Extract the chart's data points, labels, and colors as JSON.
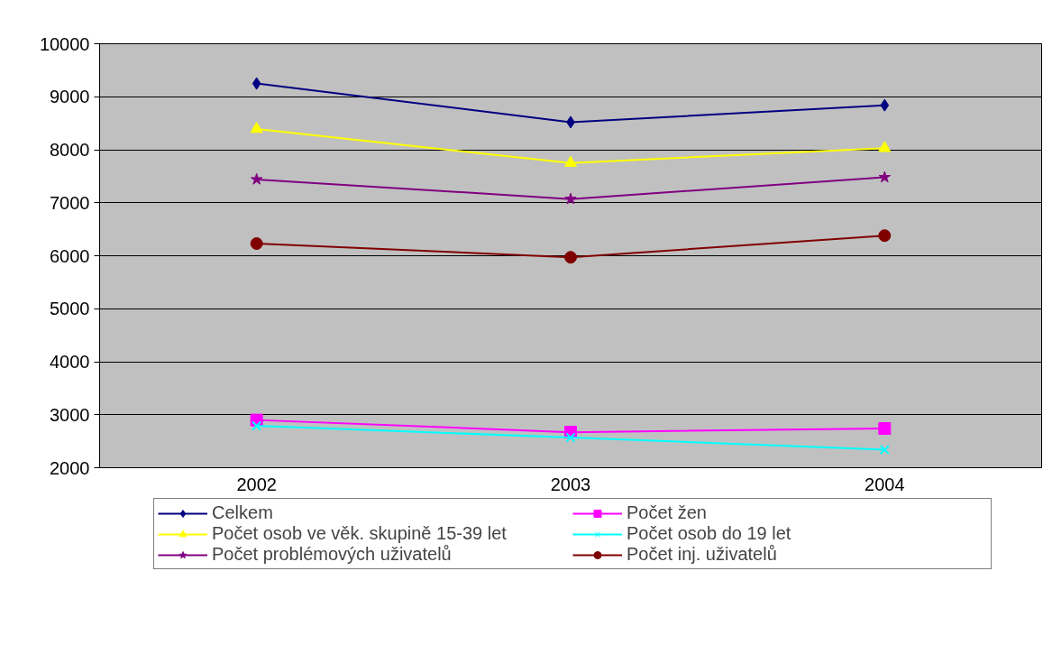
{
  "chart_data": {
    "type": "line",
    "categories": [
      "2002",
      "2003",
      "2004"
    ],
    "ylim": [
      2000,
      10000
    ],
    "yticks": [
      2000,
      3000,
      4000,
      5000,
      6000,
      7000,
      8000,
      9000,
      10000
    ],
    "grid": "y",
    "legend": "bottom",
    "line_style": "solid",
    "series": [
      {
        "name": "Celkem",
        "color": "#000080",
        "marker": "diamond",
        "values": [
          9250,
          8520,
          8840
        ]
      },
      {
        "name": "Počet žen",
        "color": "#ff00ff",
        "marker": "square",
        "values": [
          2900,
          2670,
          2740
        ]
      },
      {
        "name": "Počet osob ve věk. skupině 15-39 let",
        "color": "#ffff00",
        "marker": "triangle",
        "values": [
          8390,
          7750,
          8030
        ]
      },
      {
        "name": "Počet osob do 19 let",
        "color": "#00ffff",
        "marker": "cross",
        "values": [
          2790,
          2570,
          2340
        ]
      },
      {
        "name": "Počet problémových uživatelů",
        "color": "#800080",
        "marker": "star",
        "values": [
          7440,
          7070,
          7480
        ]
      },
      {
        "name": "Počet inj. uživatelů",
        "color": "#800000",
        "marker": "circle",
        "values": [
          6230,
          5970,
          6380
        ]
      }
    ]
  }
}
